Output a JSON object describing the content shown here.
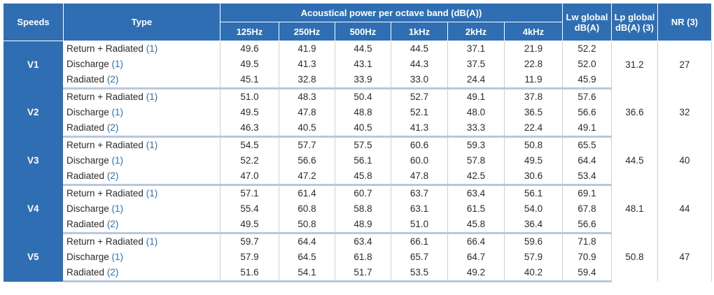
{
  "header": {
    "speeds": "Speeds",
    "type": "Type",
    "acoustical": "Acoustical power per octave band (dB(A))",
    "bands": [
      "125Hz",
      "250Hz",
      "500Hz",
      "1kHz",
      "2kHz",
      "4kHz"
    ],
    "lw_line1": "Lw global",
    "lw_line2": "dB(A)",
    "lp_line1": "Lp global",
    "lp_line2": "dB(A) (3)",
    "nr": "NR (3)"
  },
  "groups": [
    {
      "speed": "V1",
      "lp": "31.2",
      "nr": "27",
      "rows": [
        {
          "type": "Return + Radiated",
          "ref": "(1)",
          "values": [
            "49.6",
            "41.9",
            "44.5",
            "44.5",
            "37.1",
            "21.9"
          ],
          "lw": "52.2"
        },
        {
          "type": "Discharge",
          "ref": "(1)",
          "values": [
            "49.5",
            "41.3",
            "43.1",
            "44.3",
            "37.5",
            "22.8"
          ],
          "lw": "52.0"
        },
        {
          "type": "Radiated",
          "ref": "(2)",
          "values": [
            "45.1",
            "32.8",
            "33.9",
            "33.0",
            "24.4",
            "11.9"
          ],
          "lw": "45.9"
        }
      ]
    },
    {
      "speed": "V2",
      "lp": "36.6",
      "nr": "32",
      "rows": [
        {
          "type": "Return + Radiated",
          "ref": "(1)",
          "values": [
            "51.0",
            "48.3",
            "50.4",
            "52.7",
            "49.1",
            "37.8"
          ],
          "lw": "57.6"
        },
        {
          "type": "Discharge",
          "ref": "(1)",
          "values": [
            "49.5",
            "47.8",
            "48.8",
            "52.1",
            "48.0",
            "36.5"
          ],
          "lw": "56.6"
        },
        {
          "type": "Radiated",
          "ref": "(2)",
          "values": [
            "46.3",
            "40.5",
            "40.5",
            "41.3",
            "33.3",
            "22.4"
          ],
          "lw": "49.1"
        }
      ]
    },
    {
      "speed": "V3",
      "lp": "44.5",
      "nr": "40",
      "rows": [
        {
          "type": "Return + Radiated",
          "ref": "(1)",
          "values": [
            "54.5",
            "57.7",
            "57.5",
            "60.6",
            "59.3",
            "50.8"
          ],
          "lw": "65.5"
        },
        {
          "type": "Discharge",
          "ref": "(1)",
          "values": [
            "52.2",
            "56.6",
            "56.1",
            "60.0",
            "57.8",
            "49.5"
          ],
          "lw": "64.4"
        },
        {
          "type": "Radiated",
          "ref": "(2)",
          "values": [
            "47.0",
            "47.2",
            "45.8",
            "47.8",
            "42.5",
            "30.6"
          ],
          "lw": "53.4"
        }
      ]
    },
    {
      "speed": "V4",
      "lp": "48.1",
      "nr": "44",
      "rows": [
        {
          "type": "Return + Radiated",
          "ref": "(1)",
          "values": [
            "57.1",
            "61.4",
            "60.7",
            "63.7",
            "63.4",
            "56.1"
          ],
          "lw": "69.1"
        },
        {
          "type": "Discharge",
          "ref": "(1)",
          "values": [
            "55.4",
            "60.8",
            "58.8",
            "63.1",
            "61.5",
            "54.0"
          ],
          "lw": "67.8"
        },
        {
          "type": "Radiated",
          "ref": "(2)",
          "values": [
            "49.5",
            "50.8",
            "48.9",
            "51.0",
            "45.8",
            "36.4"
          ],
          "lw": "56.6"
        }
      ]
    },
    {
      "speed": "V5",
      "lp": "50.8",
      "nr": "47",
      "rows": [
        {
          "type": "Return + Radiated",
          "ref": "(1)",
          "values": [
            "59.7",
            "64.4",
            "63.4",
            "66.1",
            "66.4",
            "59.6"
          ],
          "lw": "71.8"
        },
        {
          "type": "Discharge",
          "ref": "(1)",
          "values": [
            "57.9",
            "64.5",
            "61.8",
            "65.7",
            "64.7",
            "57.9"
          ],
          "lw": "70.9"
        },
        {
          "type": "Radiated",
          "ref": "(2)",
          "values": [
            "51.6",
            "54.1",
            "51.7",
            "53.5",
            "49.2",
            "40.2"
          ],
          "lw": "59.4"
        }
      ]
    }
  ],
  "colors": {
    "header_blue": "#2f6eb3",
    "reference_blue": "#2f6eb3",
    "group_separator": "#b9c7dc"
  }
}
